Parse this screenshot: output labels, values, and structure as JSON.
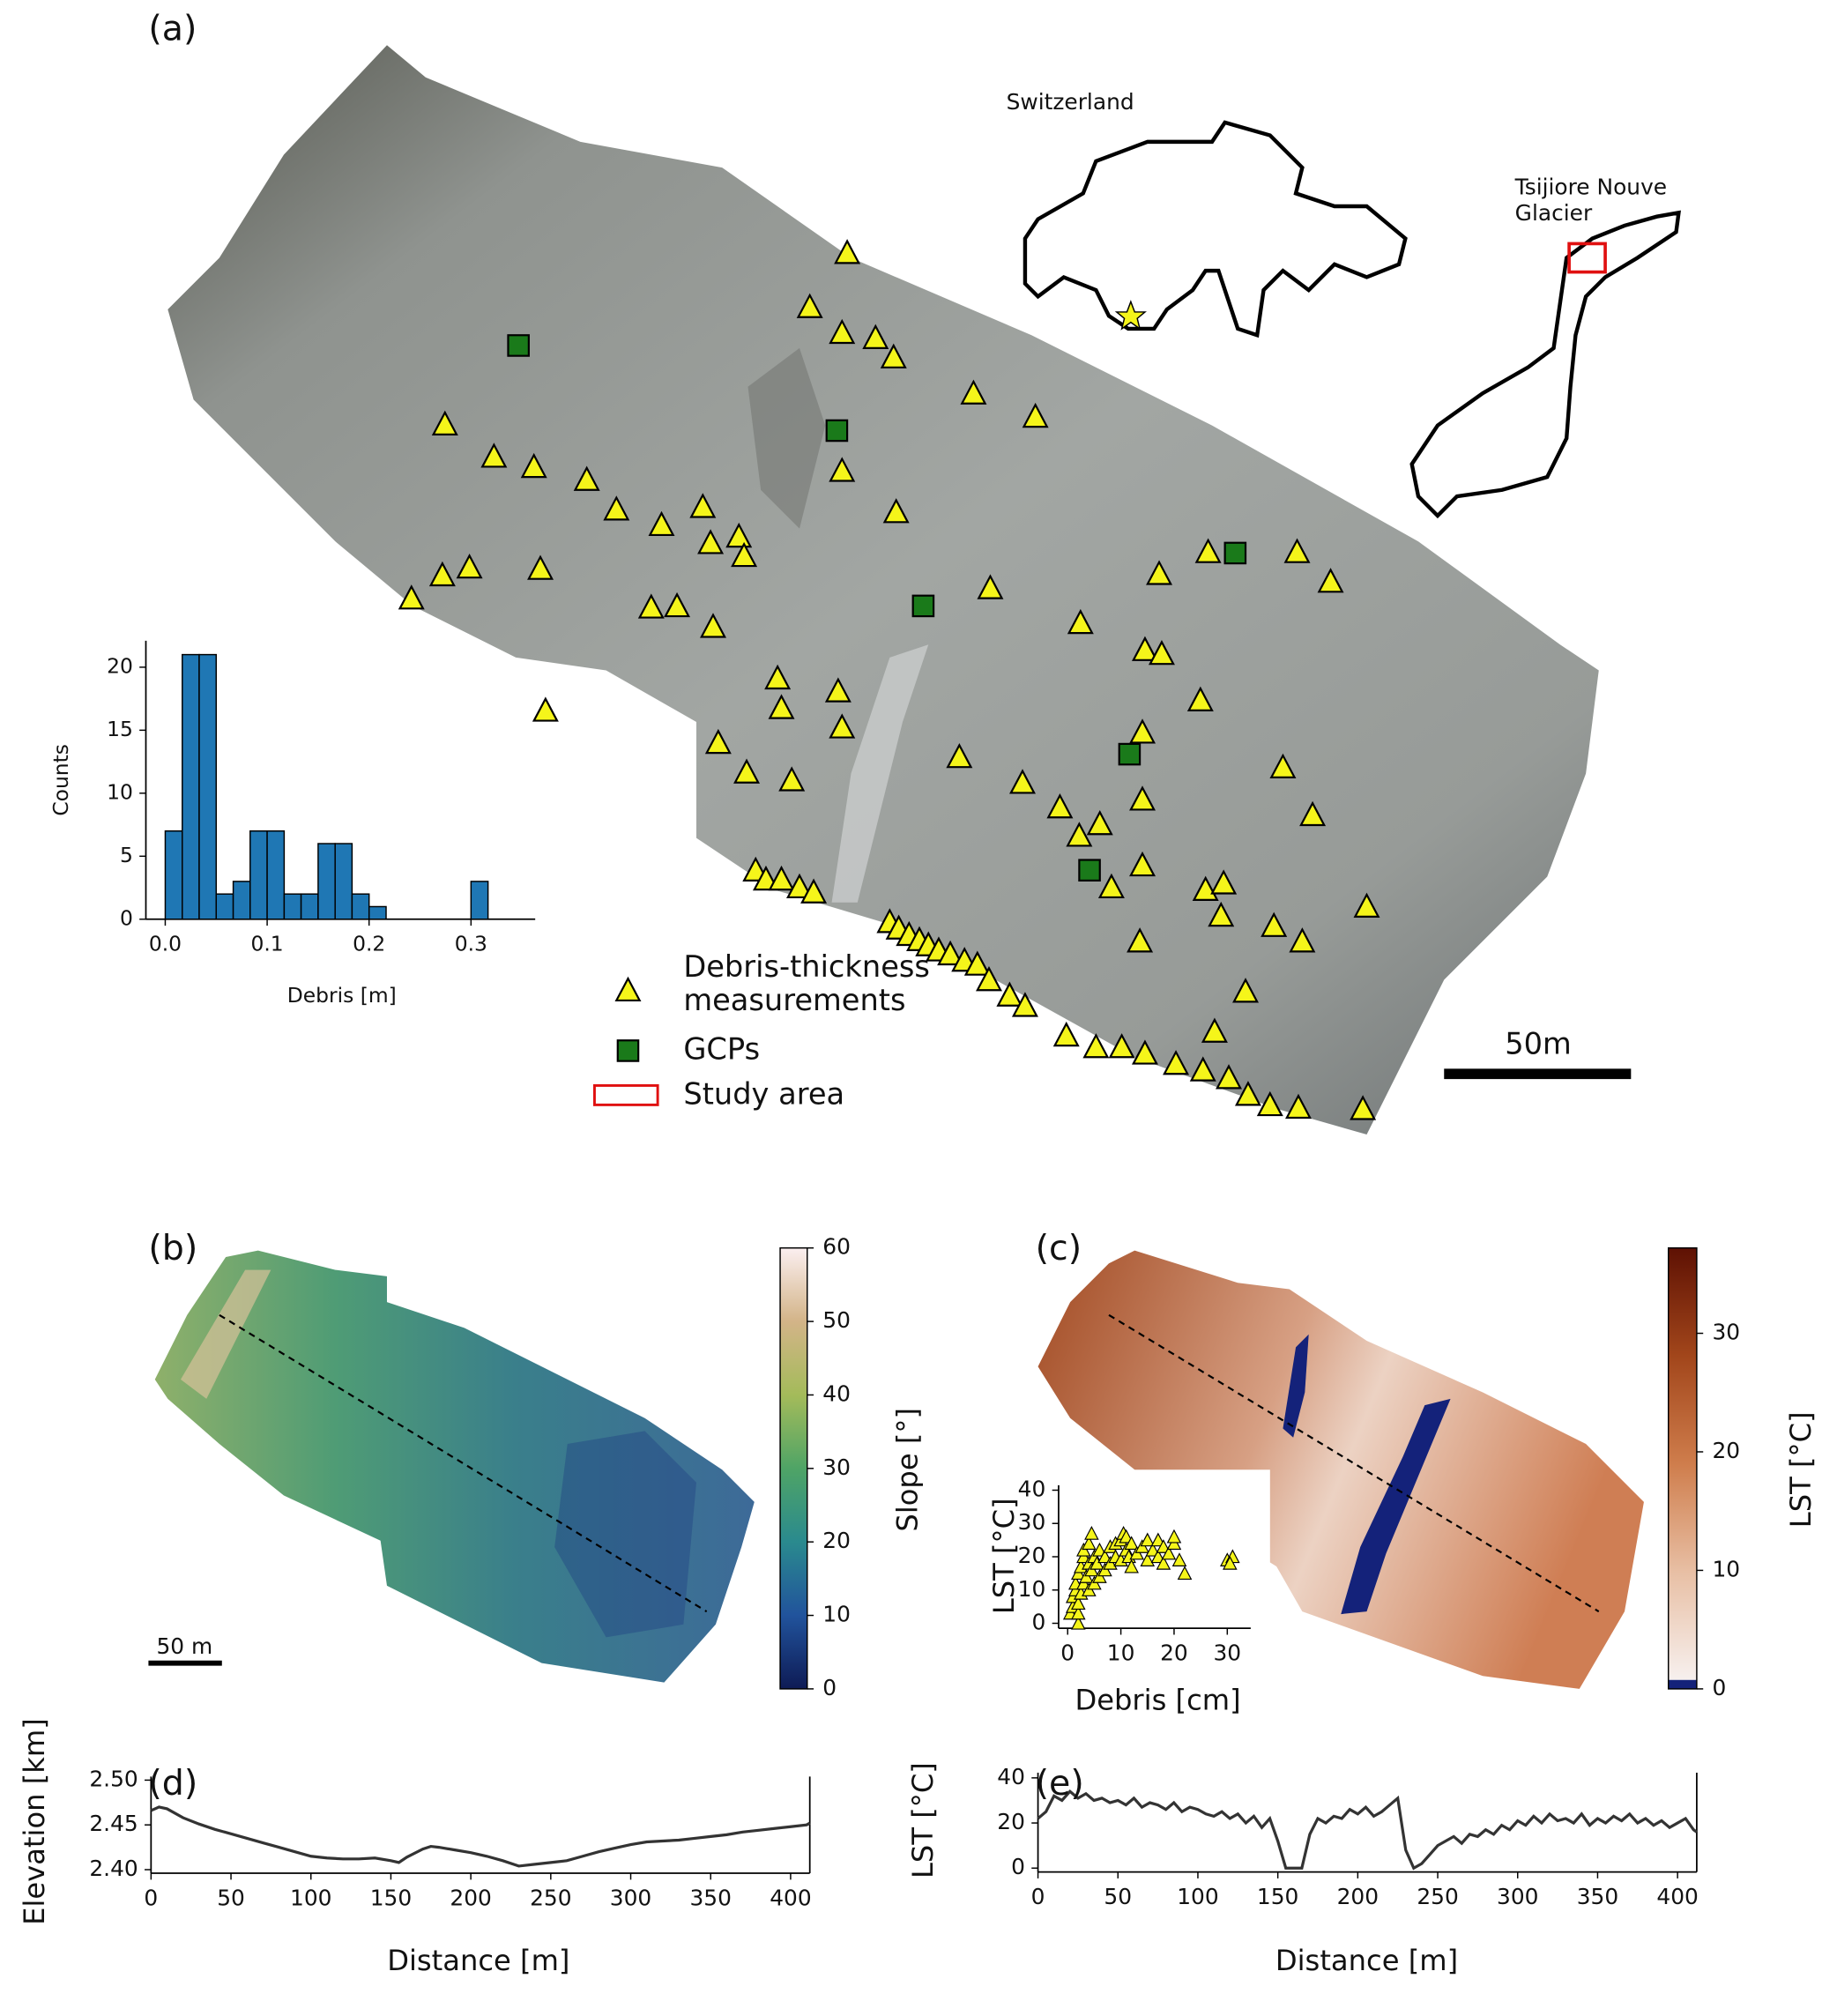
{
  "panel_labels": [
    "(a)",
    "(b)",
    "(c)",
    "(d)",
    "(e)"
  ],
  "map": {
    "inset_country": "Switzerland",
    "inset_glacier": [
      "Tsijiore Nouve",
      "Glacier"
    ],
    "legend": {
      "debris": [
        "Debris-thickness",
        "measurements"
      ],
      "gcps": "GCPs",
      "study_area": "Study area"
    },
    "scale_a": "50m",
    "scale_b": "50 m"
  },
  "chart_data": [
    {
      "type": "histogram",
      "xlabel": "Debris [m]",
      "ylabel": "Counts",
      "color": "#1f77b4",
      "bins": [
        0,
        0.0167,
        0.0333,
        0.05,
        0.0667,
        0.0833,
        0.1,
        0.1167,
        0.1333,
        0.15,
        0.1667,
        0.1833,
        0.2,
        0.2167,
        0.2333,
        0.25,
        0.2667,
        0.2833,
        0.3,
        0.3167,
        0.3333,
        0.35
      ],
      "counts": [
        7,
        21,
        21,
        2,
        3,
        7,
        7,
        2,
        2,
        6,
        6,
        2,
        1,
        0,
        0,
        0,
        0,
        0,
        3,
        0,
        0
      ],
      "xlim": [
        -0.019,
        0.363
      ],
      "ylim": [
        0,
        22.1
      ],
      "xticks": [
        {
          "value": 0,
          "label": "0.0"
        },
        0.1,
        0.2,
        0.3
      ],
      "yticks": [
        0,
        5,
        10,
        15,
        20
      ]
    },
    {
      "type": "scatter",
      "xlabel": "Debris [cm]",
      "ylabel": "LST [°C]",
      "color": "#f5f51a",
      "x": [
        0.5,
        1,
        1,
        1.5,
        1.5,
        2,
        2,
        2,
        2,
        2.5,
        2.5,
        3,
        3,
        3,
        3.5,
        4,
        4,
        4,
        4.5,
        4.5,
        5,
        5,
        5.5,
        6,
        6,
        7,
        7,
        8,
        8,
        9,
        9,
        10,
        10,
        10.5,
        11,
        11,
        11.5,
        12,
        12,
        13,
        14,
        15,
        15,
        16,
        17,
        17,
        18,
        18,
        19,
        20,
        20,
        21,
        22,
        30,
        31,
        30.5
      ],
      "y": [
        3,
        5,
        8,
        10,
        12,
        0,
        3,
        6,
        15,
        9,
        17,
        12,
        20,
        22,
        14,
        10,
        18,
        24,
        16,
        27,
        12,
        20,
        18,
        14,
        22,
        16,
        20,
        18,
        23,
        20,
        24,
        19,
        25,
        27,
        22,
        26,
        20,
        24,
        17,
        21,
        23,
        19,
        25,
        22,
        20,
        25,
        18,
        23,
        21,
        24,
        26,
        19,
        15,
        19,
        20,
        18
      ],
      "xlim": [
        -1.7,
        34.4
      ],
      "ylim": [
        -1.5,
        41.5
      ],
      "xticks": [
        0,
        10,
        20,
        30
      ],
      "yticks": [
        0,
        10,
        20,
        30,
        40
      ]
    },
    {
      "type": "line",
      "xlabel": "Distance [m]",
      "ylabel": "Elevation [km]",
      "color": "#333333",
      "x": [
        0,
        5,
        10,
        20,
        30,
        40,
        50,
        60,
        70,
        80,
        90,
        100,
        110,
        120,
        130,
        140,
        150,
        155,
        160,
        170,
        175,
        180,
        190,
        200,
        210,
        220,
        230,
        240,
        250,
        260,
        270,
        280,
        290,
        300,
        310,
        320,
        330,
        340,
        350,
        360,
        370,
        380,
        390,
        400,
        410,
        412
      ],
      "values": [
        2.466,
        2.47,
        2.468,
        2.458,
        2.451,
        2.445,
        2.44,
        2.435,
        2.43,
        2.425,
        2.42,
        2.415,
        2.413,
        2.412,
        2.412,
        2.413,
        2.41,
        2.408,
        2.414,
        2.423,
        2.426,
        2.425,
        2.422,
        2.419,
        2.415,
        2.41,
        2.404,
        2.406,
        2.408,
        2.41,
        2.415,
        2.42,
        2.424,
        2.428,
        2.431,
        2.432,
        2.433,
        2.435,
        2.437,
        2.439,
        2.442,
        2.444,
        2.446,
        2.448,
        2.45,
        2.452
      ],
      "xlim": [
        0,
        412
      ],
      "ylim": [
        2.396,
        2.504
      ],
      "xticks": [
        0,
        50,
        100,
        150,
        200,
        250,
        300,
        350,
        400
      ],
      "yticks": [
        {
          "value": 2.4,
          "label": "2.40"
        },
        2.45,
        {
          "value": 2.5,
          "label": "2.50"
        }
      ]
    },
    {
      "type": "line",
      "xlabel": "Distance [m]",
      "ylabel": "LST [°C]",
      "color": "#333333",
      "x": [
        0,
        5,
        10,
        15,
        20,
        25,
        30,
        35,
        40,
        45,
        50,
        55,
        60,
        65,
        70,
        75,
        80,
        85,
        90,
        95,
        100,
        105,
        110,
        115,
        120,
        125,
        130,
        135,
        140,
        145,
        150,
        155,
        160,
        165,
        170,
        175,
        180,
        185,
        190,
        195,
        200,
        205,
        210,
        215,
        220,
        225,
        230,
        235,
        240,
        245,
        250,
        255,
        260,
        265,
        270,
        275,
        280,
        285,
        290,
        295,
        300,
        305,
        310,
        315,
        320,
        325,
        330,
        335,
        340,
        345,
        350,
        355,
        360,
        365,
        370,
        375,
        380,
        385,
        390,
        395,
        400,
        405,
        410,
        412
      ],
      "values": [
        22,
        25,
        32,
        30,
        34,
        31,
        33,
        30,
        31,
        29,
        30,
        28,
        31,
        27,
        29,
        28,
        26,
        29,
        25,
        27,
        26,
        24,
        23,
        25,
        22,
        24,
        20,
        23,
        18,
        22,
        12,
        0,
        0,
        0,
        15,
        22,
        20,
        23,
        22,
        26,
        24,
        27,
        23,
        25,
        28,
        31,
        8,
        0,
        2,
        6,
        10,
        12,
        14,
        11,
        15,
        14,
        17,
        15,
        19,
        17,
        21,
        19,
        23,
        20,
        24,
        21,
        22,
        20,
        24,
        19,
        22,
        20,
        23,
        21,
        24,
        20,
        22,
        19,
        21,
        18,
        20,
        22,
        17,
        16
      ],
      "xlim": [
        0,
        412
      ],
      "ylim": [
        -1.7,
        42.3
      ],
      "xticks": [
        0,
        50,
        100,
        150,
        200,
        250,
        300,
        350,
        400
      ],
      "yticks": [
        0,
        20,
        40
      ]
    },
    {
      "type": "colorbar",
      "label": "Slope [°]",
      "ylim": [
        0,
        60
      ],
      "yticks": [
        0,
        10,
        20,
        30,
        40,
        50,
        60
      ],
      "colors": [
        "#0e1b55",
        "#21539c",
        "#2a8a8e",
        "#4fa466",
        "#a4bb5a",
        "#d3b488",
        "#fbeff0"
      ]
    },
    {
      "type": "colorbar",
      "label": "LST [°C]",
      "ylim": [
        0,
        37.2
      ],
      "yticks": [
        0,
        10,
        20,
        30
      ],
      "colors": [
        "#f7f0ee",
        "#e8bfa4",
        "#cf7d4c",
        "#a2461b",
        "#5e1103"
      ]
    }
  ]
}
